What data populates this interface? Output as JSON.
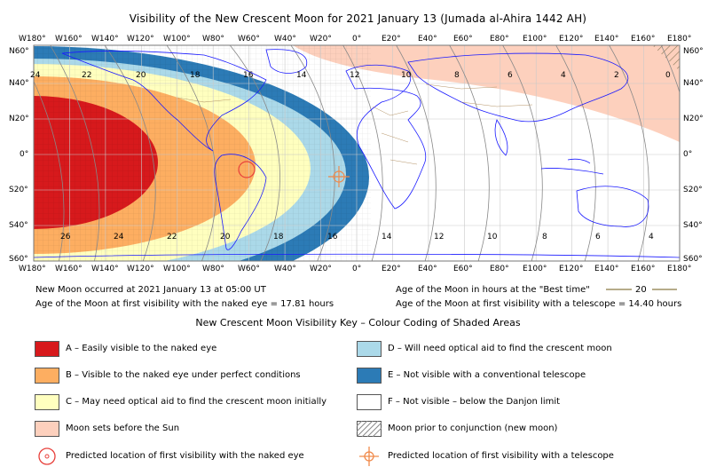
{
  "title": "Visibility of the New Crescent Moon for 2021 January 13 (Jumada al-Ahira 1442 AH)",
  "longitude_labels": [
    "W180°",
    "W160°",
    "W140°",
    "W120°",
    "W100°",
    "W80°",
    "W60°",
    "W40°",
    "W20°",
    "0°",
    "E20°",
    "E40°",
    "E60°",
    "E80°",
    "E100°",
    "E120°",
    "E140°",
    "E160°",
    "E180°"
  ],
  "latitude_labels": [
    "N60°",
    "N40°",
    "N20°",
    "0°",
    "S20°",
    "S40°",
    "S60°"
  ],
  "contour_labels": {
    "top": [
      "24",
      "22",
      "20",
      "18",
      "16",
      "14",
      "12",
      "10",
      "8",
      "6",
      "4",
      "2",
      "0"
    ],
    "bottom": [
      "26",
      "24",
      "22",
      "20",
      "18",
      "16",
      "14",
      "12",
      "10",
      "8",
      "6",
      "4"
    ]
  },
  "info": {
    "new_moon": "New Moon occurred at 2021 January 13 at 05:00 UT",
    "age_naked_eye": "Age of the Moon at first visibility with the naked eye = 17.81 hours",
    "best_time_label": "Age of the Moon in hours at the \"Best time\"",
    "best_time_sample": "20",
    "age_telescope": "Age of the Moon at first visibility with a telescope = 14.40 hours"
  },
  "key": {
    "title": "New Crescent Moon Visibility Key – Colour Coding of Shaded Areas",
    "items": [
      {
        "id": "A",
        "label": "A – Easily visible to the naked eye",
        "color": "#d7191c"
      },
      {
        "id": "B",
        "label": "B – Visible to the naked eye under perfect conditions",
        "color": "#fdae61"
      },
      {
        "id": "C",
        "label": "C – May need optical aid to find the crescent moon initially",
        "color": "#ffffbf"
      },
      {
        "id": "sets",
        "label": "Moon sets before the Sun",
        "color": "#fdd0bd"
      },
      {
        "id": "naked",
        "label": "Predicted location of first visibility with the naked eye",
        "color": "#e8413c"
      },
      {
        "id": "D",
        "label": "D – Will need optical aid to find the crescent moon",
        "color": "#abd9e9"
      },
      {
        "id": "E",
        "label": "E – Not visible with a conventional telescope",
        "color": "#2c7bb6"
      },
      {
        "id": "F",
        "label": "F – Not visible – below the Danjon limit",
        "color": "#ffffff"
      },
      {
        "id": "prior",
        "label": "Moon prior to conjunction (new moon)",
        "color": "#999999"
      },
      {
        "id": "tele",
        "label": "Predicted location of first visibility with a telescope",
        "color": "#f08a4b"
      }
    ]
  }
}
